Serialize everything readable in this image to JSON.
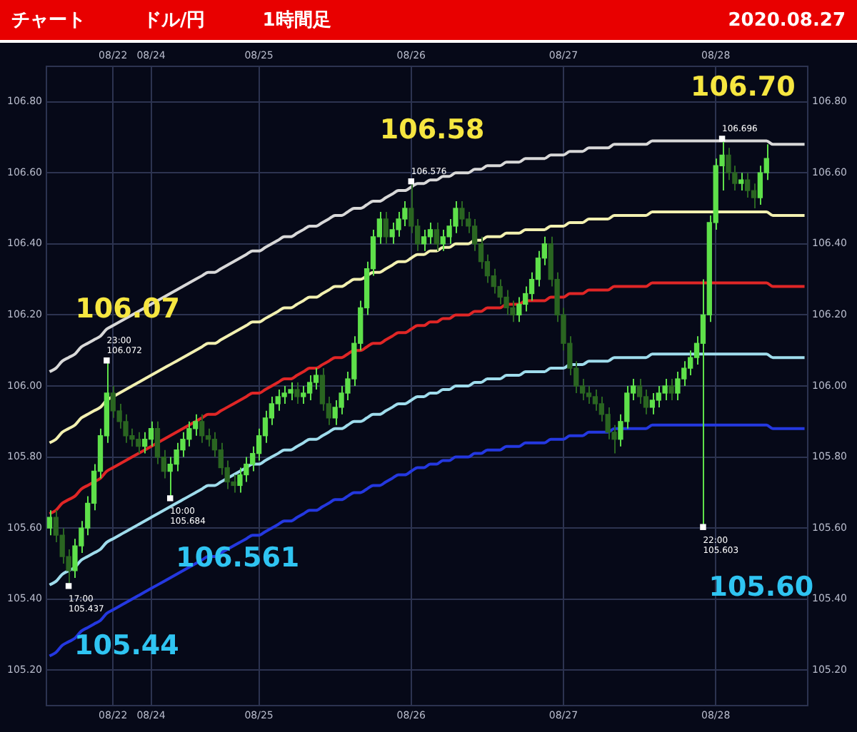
{
  "chart_data": {
    "type": "candlestick",
    "title": "チャート",
    "subtitle": "ドル/円",
    "grid": true,
    "colors": [
      "#5ee04a",
      "#2a6521",
      "#2a6521",
      "#2a6521",
      "#5ee04a",
      "#5ee04a",
      "#5ee04a",
      "#5ee04a",
      "#5ee04a",
      "#5ee04a",
      "#2a6521",
      "#2a6521",
      "#2a6521",
      "#2a6521",
      "#2a6521",
      "#5ee04a",
      "#5ee04a",
      "#2a6521",
      "#2a6521",
      "#5ee04a",
      "#5ee04a",
      "#5ee04a",
      "#5ee04a",
      "#5ee04a",
      "#2a6521",
      "#2a6521",
      "#2a6521",
      "#2a6521",
      "#2a6521",
      "#2a6521",
      "#5ee04a",
      "#5ee04a",
      "#5ee04a",
      "#5ee04a",
      "#5ee04a",
      "#5ee04a",
      "#5ee04a",
      "#5ee04a",
      "#5ee04a",
      "#2a6521",
      "#5ee04a",
      "#5ee04a",
      "#5ee04a",
      "#2a6521",
      "#2a6521",
      "#5ee04a",
      "#5ee04a",
      "#5ee04a",
      "#5ee04a",
      "#5ee04a",
      "#5ee04a",
      "#5ee04a",
      "#5ee04a",
      "#2a6521",
      "#5ee04a",
      "#5ee04a",
      "#5ee04a",
      "#2a6521",
      "#2a6521",
      "#5ee04a",
      "#5ee04a",
      "#2a6521",
      "#5ee04a",
      "#5ee04a",
      "#5ee04a",
      "#2a6521",
      "#2a6521",
      "#2a6521",
      "#2a6521",
      "#2a6521",
      "#2a6521",
      "#2a6521",
      "#2a6521",
      "#2a6521",
      "#5ee04a",
      "#5ee04a",
      "#5ee04a",
      "#5ee04a",
      "#5ee04a",
      "#2a6521",
      "#2a6521",
      "#2a6521",
      "#2a6521",
      "#2a6521",
      "#2a6521",
      "#2a6521",
      "#2a6521",
      "#2a6521",
      "#2a6521",
      "#2a6521",
      "#5ee04a",
      "#5ee04a",
      "#5ee04a",
      "#2a6521",
      "#2a6521",
      "#5ee04a",
      "#5ee04a",
      "#5ee04a",
      "#2a6521",
      "#5ee04a",
      "#5ee04a",
      "#5ee04a",
      "#5ee04a",
      "#5ee04a",
      "#5ee04a",
      "#5ee04a",
      "#5ee04a",
      "#2a6521",
      "#2a6521",
      "#5ee04a",
      "#2a6521",
      "#2a6521",
      "#5ee04a",
      "#5ee04a",
      null,
      null,
      null,
      null,
      null,
      null
    ],
    "annotations": [
      "1時間足",
      "2020.08.27",
      "105.44",
      "106.07",
      "106.561",
      "106.58",
      "105.60",
      "106.70"
    ],
    "categories": [
      null,
      null,
      null,
      null,
      null,
      null,
      null,
      null,
      null,
      null,
      "08/22",
      null,
      null,
      null,
      null,
      null,
      "08/24",
      null,
      null,
      null,
      null,
      null,
      null,
      null,
      null,
      null,
      null,
      null,
      null,
      null,
      null,
      null,
      null,
      "08/25",
      null,
      null,
      null,
      null,
      null,
      null,
      null,
      null,
      null,
      null,
      null,
      null,
      null,
      null,
      null,
      null,
      null,
      null,
      null,
      null,
      null,
      null,
      null,
      "08/26",
      null,
      null,
      null,
      null,
      null,
      null,
      null,
      null,
      null,
      null,
      null,
      null,
      null,
      null,
      null,
      null,
      null,
      null,
      null,
      null,
      null,
      null,
      null,
      "08/27",
      null,
      null,
      null,
      null,
      null,
      null,
      null,
      null,
      null,
      null,
      null,
      null,
      null,
      null,
      null,
      null,
      null,
      null,
      null,
      null,
      null,
      null,
      null,
      "08/28",
      null,
      null,
      null,
      null,
      null,
      null,
      null,
      null,
      null,
      null,
      null,
      null,
      null,
      null
    ],
    "ylim": [
      105.1,
      106.9
    ],
    "yticks": [
      {
        "value": 105.2,
        "label": "105.20"
      },
      {
        "value": 105.4,
        "label": "105.40"
      },
      {
        "value": 105.6,
        "label": "105.60"
      },
      {
        "value": 105.8,
        "label": "105.80"
      },
      {
        "value": 106,
        "label": "106.00"
      },
      {
        "value": 106.2,
        "label": "106.20"
      },
      {
        "value": 106.4,
        "label": "106.40"
      },
      {
        "value": 106.6,
        "label": "106.60"
      },
      {
        "value": 106.8,
        "label": "106.80"
      }
    ],
    "y2lim": [
      105.1,
      106.9
    ],
    "y2ticks": [
      {
        "value": 105.2,
        "label": "105.20"
      },
      {
        "value": 105.4,
        "label": "105.40"
      },
      {
        "value": 105.6,
        "label": "105.60"
      },
      {
        "value": 105.8,
        "label": "105.80"
      },
      {
        "value": 106,
        "label": "106.00"
      },
      {
        "value": 106.2,
        "label": "106.20"
      },
      {
        "value": 106.4,
        "label": "106.40"
      },
      {
        "value": 106.6,
        "label": "106.60"
      },
      {
        "value": 106.8,
        "label": "106.80"
      }
    ],
    "ohlc": [
      [
        105.6,
        105.65,
        105.58,
        105.63
      ],
      [
        105.63,
        105.65,
        105.56,
        105.58
      ],
      [
        105.58,
        105.6,
        105.5,
        105.52
      ],
      [
        105.52,
        105.54,
        105.437,
        105.48
      ],
      [
        105.48,
        105.57,
        105.46,
        105.55
      ],
      [
        105.55,
        105.62,
        105.53,
        105.6
      ],
      [
        105.6,
        105.69,
        105.58,
        105.67
      ],
      [
        105.67,
        105.78,
        105.65,
        105.76
      ],
      [
        105.76,
        105.88,
        105.74,
        105.86
      ],
      [
        105.86,
        106.072,
        105.84,
        105.98
      ],
      [
        105.98,
        106.0,
        105.91,
        105.93
      ],
      [
        105.93,
        105.95,
        105.88,
        105.9
      ],
      [
        105.9,
        105.92,
        105.84,
        105.86
      ],
      [
        105.86,
        105.88,
        105.83,
        105.85
      ],
      [
        105.85,
        105.87,
        105.81,
        105.83
      ],
      [
        105.83,
        105.87,
        105.81,
        105.85
      ],
      [
        105.85,
        105.9,
        105.83,
        105.88
      ],
      [
        105.88,
        105.9,
        105.78,
        105.8
      ],
      [
        105.8,
        105.82,
        105.74,
        105.76
      ],
      [
        105.76,
        105.8,
        105.684,
        105.78
      ],
      [
        105.78,
        105.84,
        105.76,
        105.82
      ],
      [
        105.82,
        105.87,
        105.8,
        105.85
      ],
      [
        105.85,
        105.9,
        105.83,
        105.88
      ],
      [
        105.88,
        105.92,
        105.86,
        105.9
      ],
      [
        105.9,
        105.92,
        105.84,
        105.86
      ],
      [
        105.86,
        105.88,
        105.83,
        105.85
      ],
      [
        105.85,
        105.87,
        105.8,
        105.82
      ],
      [
        105.82,
        105.84,
        105.75,
        105.77
      ],
      [
        105.77,
        105.79,
        105.71,
        105.73
      ],
      [
        105.73,
        105.75,
        105.7,
        105.72
      ],
      [
        105.72,
        105.77,
        105.7,
        105.75
      ],
      [
        105.75,
        105.8,
        105.73,
        105.78
      ],
      [
        105.78,
        105.83,
        105.76,
        105.81
      ],
      [
        105.81,
        105.88,
        105.79,
        105.86
      ],
      [
        105.86,
        105.93,
        105.84,
        105.91
      ],
      [
        105.91,
        105.97,
        105.89,
        105.95
      ],
      [
        105.95,
        105.99,
        105.93,
        105.97
      ],
      [
        105.97,
        106.0,
        105.95,
        105.98
      ],
      [
        105.98,
        106.01,
        105.96,
        105.99
      ],
      [
        105.99,
        106.01,
        105.95,
        105.97
      ],
      [
        105.97,
        106.0,
        105.95,
        105.98
      ],
      [
        105.98,
        106.03,
        105.96,
        106.01
      ],
      [
        106.01,
        106.05,
        105.99,
        106.03
      ],
      [
        106.03,
        106.05,
        105.93,
        105.95
      ],
      [
        105.95,
        105.97,
        105.89,
        105.91
      ],
      [
        105.91,
        105.96,
        105.89,
        105.94
      ],
      [
        105.94,
        106.0,
        105.92,
        105.98
      ],
      [
        105.98,
        106.04,
        105.96,
        106.02
      ],
      [
        106.02,
        106.14,
        106.0,
        106.12
      ],
      [
        106.12,
        106.24,
        106.1,
        106.22
      ],
      [
        106.22,
        106.35,
        106.2,
        106.33
      ],
      [
        106.33,
        106.44,
        106.31,
        106.42
      ],
      [
        106.42,
        106.49,
        106.4,
        106.47
      ],
      [
        106.47,
        106.49,
        106.4,
        106.42
      ],
      [
        106.42,
        106.46,
        106.4,
        106.44
      ],
      [
        106.44,
        106.49,
        106.42,
        106.47
      ],
      [
        106.47,
        106.52,
        106.45,
        106.5
      ],
      [
        106.5,
        106.576,
        106.43,
        106.45
      ],
      [
        106.45,
        106.47,
        106.38,
        106.4
      ],
      [
        106.4,
        106.44,
        106.38,
        106.42
      ],
      [
        106.42,
        106.46,
        106.4,
        106.44
      ],
      [
        106.44,
        106.46,
        106.38,
        106.4
      ],
      [
        106.4,
        106.44,
        106.38,
        106.42
      ],
      [
        106.42,
        106.47,
        106.4,
        106.45
      ],
      [
        106.45,
        106.52,
        106.43,
        106.5
      ],
      [
        106.5,
        106.52,
        106.45,
        106.47
      ],
      [
        106.47,
        106.49,
        106.43,
        106.45
      ],
      [
        106.45,
        106.47,
        106.38,
        106.4
      ],
      [
        106.4,
        106.42,
        106.33,
        106.35
      ],
      [
        106.35,
        106.37,
        106.29,
        106.31
      ],
      [
        106.31,
        106.33,
        106.26,
        106.28
      ],
      [
        106.28,
        106.3,
        106.23,
        106.25
      ],
      [
        106.25,
        106.27,
        106.2,
        106.22
      ],
      [
        106.22,
        106.24,
        106.18,
        106.2
      ],
      [
        106.2,
        106.25,
        106.18,
        106.23
      ],
      [
        106.23,
        106.28,
        106.21,
        106.26
      ],
      [
        106.26,
        106.32,
        106.24,
        106.3
      ],
      [
        106.3,
        106.38,
        106.28,
        106.36
      ],
      [
        106.36,
        106.42,
        106.34,
        106.4
      ],
      [
        106.4,
        106.42,
        106.28,
        106.3
      ],
      [
        106.3,
        106.32,
        106.18,
        106.2
      ],
      [
        106.2,
        106.22,
        106.1,
        106.12
      ],
      [
        106.12,
        106.14,
        106.03,
        106.05
      ],
      [
        106.05,
        106.07,
        105.98,
        106.0
      ],
      [
        106.0,
        106.02,
        105.96,
        105.98
      ],
      [
        105.98,
        106.0,
        105.95,
        105.97
      ],
      [
        105.97,
        105.99,
        105.93,
        105.95
      ],
      [
        105.95,
        105.97,
        105.9,
        105.92
      ],
      [
        105.92,
        105.94,
        105.85,
        105.87
      ],
      [
        105.87,
        105.89,
        105.81,
        105.85
      ],
      [
        105.85,
        105.92,
        105.83,
        105.9
      ],
      [
        105.9,
        106.0,
        105.88,
        105.98
      ],
      [
        105.98,
        106.02,
        105.96,
        106.0
      ],
      [
        106.0,
        106.02,
        105.95,
        105.97
      ],
      [
        105.97,
        105.99,
        105.92,
        105.94
      ],
      [
        105.94,
        105.98,
        105.92,
        105.96
      ],
      [
        105.96,
        106.0,
        105.94,
        105.98
      ],
      [
        105.98,
        106.02,
        105.96,
        106.0
      ],
      [
        106.0,
        106.02,
        105.96,
        105.98
      ],
      [
        105.98,
        106.04,
        105.96,
        106.02
      ],
      [
        106.02,
        106.07,
        106.0,
        106.05
      ],
      [
        106.05,
        106.1,
        106.03,
        106.08
      ],
      [
        106.08,
        106.14,
        106.06,
        106.12
      ],
      [
        106.12,
        106.3,
        105.603,
        106.2
      ],
      [
        106.2,
        106.48,
        106.18,
        106.46
      ],
      [
        106.46,
        106.64,
        106.44,
        106.62
      ],
      [
        106.62,
        106.696,
        106.55,
        106.65
      ],
      [
        106.65,
        106.67,
        106.58,
        106.6
      ],
      [
        106.6,
        106.62,
        106.55,
        106.57
      ],
      [
        106.57,
        106.6,
        106.55,
        106.58
      ],
      [
        106.58,
        106.6,
        106.53,
        106.55
      ],
      [
        106.55,
        106.57,
        106.5,
        106.53
      ],
      [
        106.53,
        106.62,
        106.51,
        106.6
      ],
      [
        106.6,
        106.68,
        106.58,
        106.64
      ],
      null,
      null,
      null,
      null,
      null,
      null
    ],
    "series": [
      {
        "type": "line",
        "color": "#d8d8d8",
        "values": [
          106.04,
          106.05,
          106.07,
          106.08,
          106.09,
          106.11,
          106.12,
          106.13,
          106.14,
          106.16,
          106.17,
          106.18,
          106.19,
          106.2,
          106.21,
          106.22,
          106.23,
          106.24,
          106.25,
          106.26,
          106.27,
          106.28,
          106.29,
          106.3,
          106.31,
          106.32,
          106.32,
          106.33,
          106.34,
          106.35,
          106.36,
          106.37,
          106.38,
          106.38,
          106.39,
          106.4,
          106.41,
          106.42,
          106.42,
          106.43,
          106.44,
          106.45,
          106.45,
          106.46,
          106.47,
          106.48,
          106.48,
          106.49,
          106.5,
          106.5,
          106.51,
          106.52,
          106.52,
          106.53,
          106.54,
          106.55,
          106.55,
          106.56,
          106.57,
          106.57,
          106.58,
          106.58,
          106.59,
          106.59,
          106.6,
          106.6,
          106.6,
          106.61,
          106.61,
          106.62,
          106.62,
          106.62,
          106.63,
          106.63,
          106.63,
          106.64,
          106.64,
          106.64,
          106.64,
          106.65,
          106.65,
          106.65,
          106.66,
          106.66,
          106.66,
          106.67,
          106.67,
          106.67,
          106.67,
          106.68,
          106.68,
          106.68,
          106.68,
          106.68,
          106.68,
          106.69,
          106.69,
          106.69,
          106.69,
          106.69,
          106.69,
          106.69,
          106.69,
          106.69,
          106.69,
          106.69,
          106.69,
          106.69,
          106.69,
          106.69,
          106.69,
          106.69,
          106.69,
          106.69,
          106.68,
          106.68,
          106.68,
          106.68,
          106.68,
          106.68
        ]
      },
      {
        "type": "line",
        "color": "#f2f0b0",
        "values": [
          105.84,
          105.85,
          105.87,
          105.88,
          105.89,
          105.91,
          105.92,
          105.93,
          105.94,
          105.96,
          105.97,
          105.98,
          105.99,
          106.0,
          106.01,
          106.02,
          106.03,
          106.04,
          106.05,
          106.06,
          106.07,
          106.08,
          106.09,
          106.1,
          106.11,
          106.12,
          106.12,
          106.13,
          106.14,
          106.15,
          106.16,
          106.17,
          106.18,
          106.18,
          106.19,
          106.2,
          106.21,
          106.22,
          106.22,
          106.23,
          106.24,
          106.25,
          106.25,
          106.26,
          106.27,
          106.28,
          106.28,
          106.29,
          106.3,
          106.3,
          106.31,
          106.32,
          106.32,
          106.33,
          106.34,
          106.35,
          106.35,
          106.36,
          106.37,
          106.37,
          106.38,
          106.38,
          106.39,
          106.39,
          106.4,
          106.4,
          106.4,
          106.41,
          106.41,
          106.42,
          106.42,
          106.42,
          106.43,
          106.43,
          106.43,
          106.44,
          106.44,
          106.44,
          106.44,
          106.45,
          106.45,
          106.45,
          106.46,
          106.46,
          106.46,
          106.47,
          106.47,
          106.47,
          106.47,
          106.48,
          106.48,
          106.48,
          106.48,
          106.48,
          106.48,
          106.49,
          106.49,
          106.49,
          106.49,
          106.49,
          106.49,
          106.49,
          106.49,
          106.49,
          106.49,
          106.49,
          106.49,
          106.49,
          106.49,
          106.49,
          106.49,
          106.49,
          106.49,
          106.49,
          106.48,
          106.48,
          106.48,
          106.48,
          106.48,
          106.48
        ]
      },
      {
        "type": "line",
        "color": "#e02626",
        "values": [
          105.64,
          105.65,
          105.67,
          105.68,
          105.69,
          105.71,
          105.72,
          105.73,
          105.74,
          105.76,
          105.77,
          105.78,
          105.79,
          105.8,
          105.81,
          105.82,
          105.83,
          105.84,
          105.85,
          105.86,
          105.87,
          105.88,
          105.89,
          105.9,
          105.91,
          105.92,
          105.92,
          105.93,
          105.94,
          105.95,
          105.96,
          105.97,
          105.98,
          105.98,
          105.99,
          106.0,
          106.01,
          106.02,
          106.02,
          106.03,
          106.04,
          106.05,
          106.05,
          106.06,
          106.07,
          106.08,
          106.08,
          106.09,
          106.1,
          106.1,
          106.11,
          106.12,
          106.12,
          106.13,
          106.14,
          106.15,
          106.15,
          106.16,
          106.17,
          106.17,
          106.18,
          106.18,
          106.19,
          106.19,
          106.2,
          106.2,
          106.2,
          106.21,
          106.21,
          106.22,
          106.22,
          106.22,
          106.23,
          106.23,
          106.23,
          106.24,
          106.24,
          106.24,
          106.24,
          106.25,
          106.25,
          106.25,
          106.26,
          106.26,
          106.26,
          106.27,
          106.27,
          106.27,
          106.27,
          106.28,
          106.28,
          106.28,
          106.28,
          106.28,
          106.28,
          106.29,
          106.29,
          106.29,
          106.29,
          106.29,
          106.29,
          106.29,
          106.29,
          106.29,
          106.29,
          106.29,
          106.29,
          106.29,
          106.29,
          106.29,
          106.29,
          106.29,
          106.29,
          106.29,
          106.28,
          106.28,
          106.28,
          106.28,
          106.28,
          106.28
        ]
      },
      {
        "type": "line",
        "color": "#9fdcec",
        "values": [
          105.44,
          105.45,
          105.47,
          105.48,
          105.49,
          105.51,
          105.52,
          105.53,
          105.54,
          105.56,
          105.57,
          105.58,
          105.59,
          105.6,
          105.61,
          105.62,
          105.63,
          105.64,
          105.65,
          105.66,
          105.67,
          105.68,
          105.69,
          105.7,
          105.71,
          105.72,
          105.72,
          105.73,
          105.74,
          105.75,
          105.76,
          105.77,
          105.78,
          105.78,
          105.79,
          105.8,
          105.81,
          105.82,
          105.82,
          105.83,
          105.84,
          105.85,
          105.85,
          105.86,
          105.87,
          105.88,
          105.88,
          105.89,
          105.9,
          105.9,
          105.91,
          105.92,
          105.92,
          105.93,
          105.94,
          105.95,
          105.95,
          105.96,
          105.97,
          105.97,
          105.98,
          105.98,
          105.99,
          105.99,
          106.0,
          106.0,
          106.0,
          106.01,
          106.01,
          106.02,
          106.02,
          106.02,
          106.03,
          106.03,
          106.03,
          106.04,
          106.04,
          106.04,
          106.04,
          106.05,
          106.05,
          106.05,
          106.06,
          106.06,
          106.06,
          106.07,
          106.07,
          106.07,
          106.07,
          106.08,
          106.08,
          106.08,
          106.08,
          106.08,
          106.08,
          106.09,
          106.09,
          106.09,
          106.09,
          106.09,
          106.09,
          106.09,
          106.09,
          106.09,
          106.09,
          106.09,
          106.09,
          106.09,
          106.09,
          106.09,
          106.09,
          106.09,
          106.09,
          106.09,
          106.08,
          106.08,
          106.08,
          106.08,
          106.08,
          106.08
        ]
      },
      {
        "type": "line",
        "color": "#2438e0",
        "values": [
          105.24,
          105.25,
          105.27,
          105.28,
          105.29,
          105.31,
          105.32,
          105.33,
          105.34,
          105.36,
          105.37,
          105.38,
          105.39,
          105.4,
          105.41,
          105.42,
          105.43,
          105.44,
          105.45,
          105.46,
          105.47,
          105.48,
          105.49,
          105.5,
          105.51,
          105.52,
          105.52,
          105.53,
          105.54,
          105.55,
          105.56,
          105.57,
          105.58,
          105.58,
          105.59,
          105.6,
          105.61,
          105.62,
          105.62,
          105.63,
          105.64,
          105.65,
          105.65,
          105.66,
          105.67,
          105.68,
          105.68,
          105.69,
          105.7,
          105.7,
          105.71,
          105.72,
          105.72,
          105.73,
          105.74,
          105.75,
          105.75,
          105.76,
          105.77,
          105.77,
          105.78,
          105.78,
          105.79,
          105.79,
          105.8,
          105.8,
          105.8,
          105.81,
          105.81,
          105.82,
          105.82,
          105.82,
          105.83,
          105.83,
          105.83,
          105.84,
          105.84,
          105.84,
          105.84,
          105.85,
          105.85,
          105.85,
          105.86,
          105.86,
          105.86,
          105.87,
          105.87,
          105.87,
          105.87,
          105.88,
          105.88,
          105.88,
          105.88,
          105.88,
          105.88,
          105.89,
          105.89,
          105.89,
          105.89,
          105.89,
          105.89,
          105.89,
          105.89,
          105.89,
          105.89,
          105.89,
          105.89,
          105.89,
          105.89,
          105.89,
          105.89,
          105.89,
          105.89,
          105.89,
          105.88,
          105.88,
          105.88,
          105.88,
          105.88,
          105.88
        ]
      },
      {
        "type": "scatter",
        "color": "#ffffff",
        "marker": "square",
        "values": [
          null,
          null,
          null,
          105.437,
          null,
          null,
          null,
          null,
          null,
          106.072,
          null,
          null,
          null,
          null,
          null,
          null,
          null,
          null,
          null,
          105.684,
          null,
          null,
          null,
          null,
          null,
          null,
          null,
          null,
          null,
          null,
          null,
          null,
          null,
          null,
          null,
          null,
          null,
          null,
          null,
          null,
          null,
          null,
          null,
          null,
          null,
          null,
          null,
          null,
          null,
          null,
          null,
          null,
          null,
          null,
          null,
          null,
          null,
          106.576,
          null,
          null,
          null,
          null,
          null,
          null,
          null,
          null,
          null,
          null,
          null,
          null,
          null,
          null,
          null,
          null,
          null,
          null,
          null,
          null,
          null,
          null,
          null,
          null,
          null,
          null,
          null,
          null,
          null,
          null,
          null,
          null,
          null,
          null,
          null,
          null,
          null,
          null,
          null,
          null,
          null,
          null,
          null,
          null,
          null,
          105.603,
          null,
          null,
          106.696,
          null,
          null,
          null,
          null,
          null,
          null,
          null,
          null,
          null,
          null,
          null,
          null,
          null
        ],
        "value_labels": [
          null,
          null,
          null,
          "17:00 105.437",
          null,
          null,
          null,
          null,
          null,
          "23:00 106.072",
          null,
          null,
          null,
          null,
          null,
          null,
          null,
          null,
          null,
          "10:00 105.684",
          null,
          null,
          null,
          null,
          null,
          null,
          null,
          null,
          null,
          null,
          null,
          null,
          null,
          null,
          null,
          null,
          null,
          null,
          null,
          null,
          null,
          null,
          null,
          null,
          null,
          null,
          null,
          null,
          null,
          null,
          null,
          null,
          null,
          null,
          null,
          null,
          null,
          "106.576",
          null,
          null,
          null,
          null,
          null,
          null,
          null,
          null,
          null,
          null,
          null,
          null,
          null,
          null,
          null,
          null,
          null,
          null,
          null,
          null,
          null,
          null,
          null,
          null,
          null,
          null,
          null,
          null,
          null,
          null,
          null,
          null,
          null,
          null,
          null,
          null,
          null,
          null,
          null,
          null,
          null,
          null,
          null,
          null,
          null,
          "22:00 105.603",
          null,
          null,
          "106.696",
          null,
          null,
          null,
          null,
          null,
          null,
          null,
          null,
          null,
          null,
          null,
          null,
          null
        ]
      }
    ]
  }
}
